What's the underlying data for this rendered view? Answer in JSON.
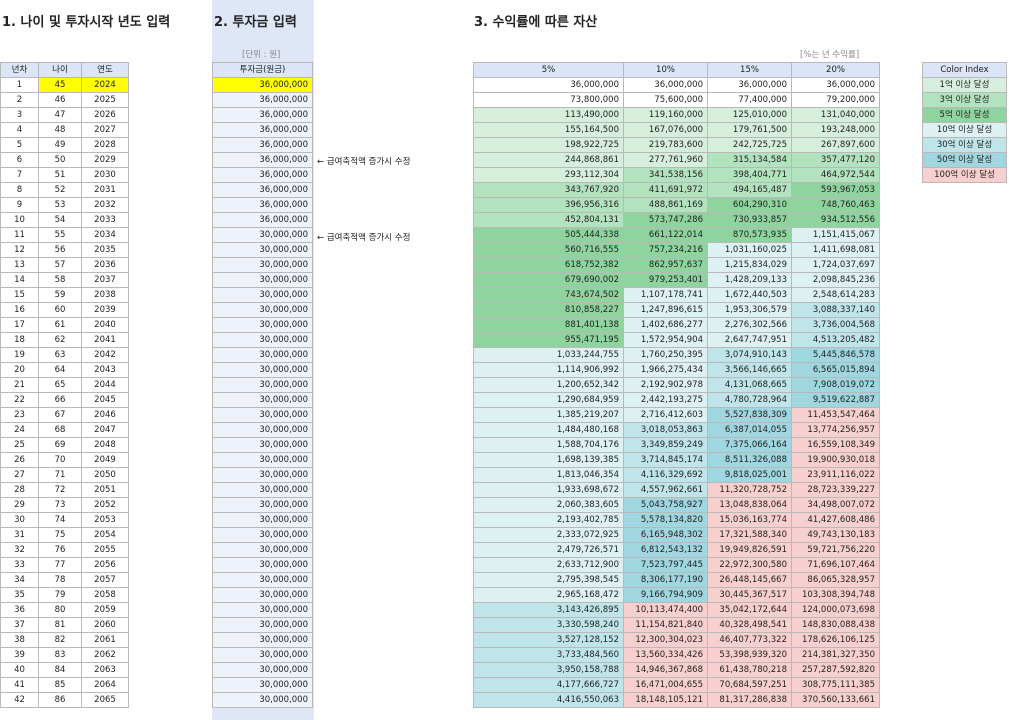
{
  "sections": {
    "s1_title": "1. 나이 및 투자시작 년도 입력",
    "s2_title": "2. 투자금 입력",
    "s3_title": "3. 수익률에 따른 자산"
  },
  "invest_unit_note": "[단위 : 원]",
  "rates_note": "[%는 년 수익률]",
  "age_table": {
    "headers": [
      "년차",
      "나이",
      "연도"
    ],
    "rows": [
      [
        "1",
        "45",
        "2024"
      ],
      [
        "2",
        "46",
        "2025"
      ],
      [
        "3",
        "47",
        "2026"
      ],
      [
        "4",
        "48",
        "2027"
      ],
      [
        "5",
        "49",
        "2028"
      ],
      [
        "6",
        "50",
        "2029"
      ],
      [
        "7",
        "51",
        "2030"
      ],
      [
        "8",
        "52",
        "2031"
      ],
      [
        "9",
        "53",
        "2032"
      ],
      [
        "10",
        "54",
        "2033"
      ],
      [
        "11",
        "55",
        "2034"
      ],
      [
        "12",
        "56",
        "2035"
      ],
      [
        "13",
        "57",
        "2036"
      ],
      [
        "14",
        "58",
        "2037"
      ],
      [
        "15",
        "59",
        "2038"
      ],
      [
        "16",
        "60",
        "2039"
      ],
      [
        "17",
        "61",
        "2040"
      ],
      [
        "18",
        "62",
        "2041"
      ],
      [
        "19",
        "63",
        "2042"
      ],
      [
        "20",
        "64",
        "2043"
      ],
      [
        "21",
        "65",
        "2044"
      ],
      [
        "22",
        "66",
        "2045"
      ],
      [
        "23",
        "67",
        "2046"
      ],
      [
        "24",
        "68",
        "2047"
      ],
      [
        "25",
        "69",
        "2048"
      ],
      [
        "26",
        "70",
        "2049"
      ],
      [
        "27",
        "71",
        "2050"
      ],
      [
        "28",
        "72",
        "2051"
      ],
      [
        "29",
        "73",
        "2052"
      ],
      [
        "30",
        "74",
        "2053"
      ],
      [
        "31",
        "75",
        "2054"
      ],
      [
        "32",
        "76",
        "2055"
      ],
      [
        "33",
        "77",
        "2056"
      ],
      [
        "34",
        "78",
        "2057"
      ],
      [
        "35",
        "79",
        "2058"
      ],
      [
        "36",
        "80",
        "2059"
      ],
      [
        "37",
        "81",
        "2060"
      ],
      [
        "38",
        "82",
        "2061"
      ],
      [
        "39",
        "83",
        "2062"
      ],
      [
        "40",
        "84",
        "2063"
      ],
      [
        "41",
        "85",
        "2064"
      ],
      [
        "42",
        "86",
        "2065"
      ]
    ]
  },
  "invest_table": {
    "header": "투자금(원금)",
    "values": [
      "36,000,000",
      "36,000,000",
      "36,000,000",
      "36,000,000",
      "36,000,000",
      "36,000,000",
      "36,000,000",
      "36,000,000",
      "36,000,000",
      "36,000,000",
      "30,000,000",
      "30,000,000",
      "30,000,000",
      "30,000,000",
      "30,000,000",
      "30,000,000",
      "30,000,000",
      "30,000,000",
      "30,000,000",
      "30,000,000",
      "30,000,000",
      "30,000,000",
      "30,000,000",
      "30,000,000",
      "30,000,000",
      "30,000,000",
      "30,000,000",
      "30,000,000",
      "30,000,000",
      "30,000,000",
      "30,000,000",
      "30,000,000",
      "30,000,000",
      "30,000,000",
      "30,000,000",
      "30,000,000",
      "30,000,000",
      "30,000,000",
      "30,000,000",
      "30,000,000",
      "30,000,000",
      "30,000,000"
    ]
  },
  "notes": {
    "row6": "← 급여축적액 증가시 수정",
    "row11": "← 급여축적액 증가시 수정"
  },
  "returns_table": {
    "headers": [
      "5%",
      "10%",
      "15%",
      "20%"
    ],
    "rows": [
      [
        "36,000,000",
        "36,000,000",
        "36,000,000",
        "36,000,000"
      ],
      [
        "73,800,000",
        "75,600,000",
        "77,400,000",
        "79,200,000"
      ],
      [
        "113,490,000",
        "119,160,000",
        "125,010,000",
        "131,040,000"
      ],
      [
        "155,164,500",
        "167,076,000",
        "179,761,500",
        "193,248,000"
      ],
      [
        "198,922,725",
        "219,783,600",
        "242,725,725",
        "267,897,600"
      ],
      [
        "244,868,861",
        "277,761,960",
        "315,134,584",
        "357,477,120"
      ],
      [
        "293,112,304",
        "341,538,156",
        "398,404,771",
        "464,972,544"
      ],
      [
        "343,767,920",
        "411,691,972",
        "494,165,487",
        "593,967,053"
      ],
      [
        "396,956,316",
        "488,861,169",
        "604,290,310",
        "748,760,463"
      ],
      [
        "452,804,131",
        "573,747,286",
        "730,933,857",
        "934,512,556"
      ],
      [
        "505,444,338",
        "661,122,014",
        "870,573,935",
        "1,151,415,067"
      ],
      [
        "560,716,555",
        "757,234,216",
        "1,031,160,025",
        "1,411,698,081"
      ],
      [
        "618,752,382",
        "862,957,637",
        "1,215,834,029",
        "1,724,037,697"
      ],
      [
        "679,690,002",
        "979,253,401",
        "1,428,209,133",
        "2,098,845,236"
      ],
      [
        "743,674,502",
        "1,107,178,741",
        "1,672,440,503",
        "2,548,614,283"
      ],
      [
        "810,858,227",
        "1,247,896,615",
        "1,953,306,579",
        "3,088,337,140"
      ],
      [
        "881,401,138",
        "1,402,686,277",
        "2,276,302,566",
        "3,736,004,568"
      ],
      [
        "955,471,195",
        "1,572,954,904",
        "2,647,747,951",
        "4,513,205,482"
      ],
      [
        "1,033,244,755",
        "1,760,250,395",
        "3,074,910,143",
        "5,445,846,578"
      ],
      [
        "1,114,906,992",
        "1,966,275,434",
        "3,566,146,665",
        "6,565,015,894"
      ],
      [
        "1,200,652,342",
        "2,192,902,978",
        "4,131,068,665",
        "7,908,019,072"
      ],
      [
        "1,290,684,959",
        "2,442,193,275",
        "4,780,728,964",
        "9,519,622,887"
      ],
      [
        "1,385,219,207",
        "2,716,412,603",
        "5,527,838,309",
        "11,453,547,464"
      ],
      [
        "1,484,480,168",
        "3,018,053,863",
        "6,387,014,055",
        "13,774,256,957"
      ],
      [
        "1,588,704,176",
        "3,349,859,249",
        "7,375,066,164",
        "16,559,108,349"
      ],
      [
        "1,698,139,385",
        "3,714,845,174",
        "8,511,326,088",
        "19,900,930,018"
      ],
      [
        "1,813,046,354",
        "4,116,329,692",
        "9,818,025,001",
        "23,911,116,022"
      ],
      [
        "1,933,698,672",
        "4,557,962,661",
        "11,320,728,752",
        "28,723,339,227"
      ],
      [
        "2,060,383,605",
        "5,043,758,927",
        "13,048,838,064",
        "34,498,007,072"
      ],
      [
        "2,193,402,785",
        "5,578,134,820",
        "15,036,163,774",
        "41,427,608,486"
      ],
      [
        "2,333,072,925",
        "6,165,948,302",
        "17,321,588,340",
        "49,743,130,183"
      ],
      [
        "2,479,726,571",
        "6,812,543,132",
        "19,949,826,591",
        "59,721,756,220"
      ],
      [
        "2,633,712,900",
        "7,523,797,445",
        "22,972,300,580",
        "71,696,107,464"
      ],
      [
        "2,795,398,545",
        "8,306,177,190",
        "26,448,145,667",
        "86,065,328,957"
      ],
      [
        "2,965,168,472",
        "9,166,794,909",
        "30,445,367,517",
        "103,308,394,748"
      ],
      [
        "3,143,426,895",
        "10,113,474,400",
        "35,042,172,644",
        "124,000,073,698"
      ],
      [
        "3,330,598,240",
        "11,154,821,840",
        "40,328,498,541",
        "148,830,088,438"
      ],
      [
        "3,527,128,152",
        "12,300,304,023",
        "46,407,773,322",
        "178,626,106,125"
      ],
      [
        "3,733,484,560",
        "13,560,334,426",
        "53,398,939,320",
        "214,381,327,350"
      ],
      [
        "3,950,158,788",
        "14,946,367,868",
        "61,438,780,218",
        "257,287,592,820"
      ],
      [
        "4,177,666,727",
        "16,471,004,655",
        "70,684,597,251",
        "308,775,111,385"
      ],
      [
        "4,416,550,063",
        "18,148,105,121",
        "81,317,286,838",
        "370,560,133,661"
      ]
    ]
  },
  "legend": {
    "header": "Color Index",
    "items": [
      {
        "label": "1억 이상 달성",
        "color": "#d6efdc"
      },
      {
        "label": "3억 이상 달성",
        "color": "#b3e2be"
      },
      {
        "label": "5억 이상 달성",
        "color": "#8fd49f"
      },
      {
        "label": "10억 이상 달성",
        "color": "#ddf1f3"
      },
      {
        "label": "30억 이상 달성",
        "color": "#bfe5ea"
      },
      {
        "label": "50억 이상 달성",
        "color": "#9fd6df"
      },
      {
        "label": "100억 이상 달성",
        "color": "#f7cfcf"
      }
    ]
  }
}
